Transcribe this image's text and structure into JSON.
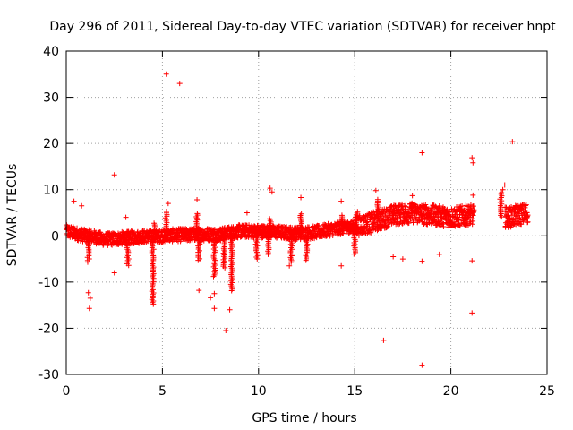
{
  "chart_data": {
    "type": "scatter",
    "title": "Day 296 of 2011, Sidereal Day-to-day VTEC variation (SDTVAR) for receiver hnpt",
    "xlabel": "GPS time / hours",
    "ylabel": "SDTVAR / TECUs",
    "xlim": [
      0,
      25
    ],
    "ylim": [
      -30,
      40
    ],
    "xticks": [
      0,
      5,
      10,
      15,
      20,
      25
    ],
    "yticks": [
      -30,
      -20,
      -10,
      0,
      10,
      20,
      30,
      40
    ],
    "xtick_labels": [
      "0",
      "5",
      "10",
      "15",
      "20",
      "25"
    ],
    "ytick_labels": [
      "-30",
      "-20",
      "-10",
      "0",
      "10",
      "20",
      "30",
      "40"
    ],
    "grid": true,
    "marker": "+",
    "color": "#ff0000",
    "series": [
      {
        "name": "SDTVAR",
        "description_of_dense_band": "approx. center values by hour",
        "trend": [
          {
            "x": 0.0,
            "y": 1.0
          },
          {
            "x": 0.5,
            "y": 0.5
          },
          {
            "x": 1.0,
            "y": 0.0
          },
          {
            "x": 1.5,
            "y": -0.3
          },
          {
            "x": 2.0,
            "y": -0.8
          },
          {
            "x": 3.0,
            "y": -0.5
          },
          {
            "x": 4.0,
            "y": -0.2
          },
          {
            "x": 5.0,
            "y": 0.0
          },
          {
            "x": 6.0,
            "y": 0.2
          },
          {
            "x": 7.0,
            "y": 0.3
          },
          {
            "x": 8.0,
            "y": 0.3
          },
          {
            "x": 9.0,
            "y": 1.0
          },
          {
            "x": 10.0,
            "y": 1.0
          },
          {
            "x": 11.0,
            "y": 0.8
          },
          {
            "x": 12.0,
            "y": 0.5
          },
          {
            "x": 13.0,
            "y": 0.8
          },
          {
            "x": 14.0,
            "y": 1.5
          },
          {
            "x": 15.0,
            "y": 2.0
          },
          {
            "x": 16.0,
            "y": 3.0
          },
          {
            "x": 17.0,
            "y": 4.5
          },
          {
            "x": 18.0,
            "y": 5.0
          },
          {
            "x": 19.0,
            "y": 4.5
          },
          {
            "x": 20.0,
            "y": 4.0
          },
          {
            "x": 21.0,
            "y": 4.5
          },
          {
            "x": 23.0,
            "y": 4.0
          },
          {
            "x": 24.0,
            "y": 5.0
          }
        ],
        "gaps": [
          [
            21.2,
            22.8
          ]
        ],
        "outliers": [
          {
            "x": 5.2,
            "y": 35.0
          },
          {
            "x": 5.9,
            "y": 33.0
          },
          {
            "x": 2.5,
            "y": 13.2
          },
          {
            "x": 23.2,
            "y": 20.4
          },
          {
            "x": 18.5,
            "y": 18.0
          },
          {
            "x": 21.1,
            "y": 16.9
          },
          {
            "x": 21.15,
            "y": 15.8
          },
          {
            "x": 18.5,
            "y": -28.0
          },
          {
            "x": 16.5,
            "y": -22.6
          },
          {
            "x": 8.3,
            "y": -20.5
          },
          {
            "x": 21.1,
            "y": -16.7
          },
          {
            "x": 8.5,
            "y": -16.0
          },
          {
            "x": 1.2,
            "y": -15.7
          },
          {
            "x": 7.7,
            "y": -15.7
          },
          {
            "x": 1.15,
            "y": -12.3
          },
          {
            "x": 1.25,
            "y": -13.5
          },
          {
            "x": 7.5,
            "y": -13.4
          },
          {
            "x": 7.7,
            "y": -12.5
          },
          {
            "x": 6.9,
            "y": -11.8
          },
          {
            "x": 21.1,
            "y": -5.4
          },
          {
            "x": 18.5,
            "y": -5.5
          },
          {
            "x": 17.5,
            "y": -5.0
          },
          {
            "x": 0.4,
            "y": 7.5
          },
          {
            "x": 0.8,
            "y": 6.5
          },
          {
            "x": 5.3,
            "y": 7.0
          },
          {
            "x": 6.8,
            "y": 7.8
          },
          {
            "x": 10.6,
            "y": 10.3
          },
          {
            "x": 10.7,
            "y": 9.5
          },
          {
            "x": 12.2,
            "y": 8.3
          },
          {
            "x": 14.3,
            "y": 7.5
          },
          {
            "x": 16.1,
            "y": 9.8
          },
          {
            "x": 18.0,
            "y": 8.7
          },
          {
            "x": 22.7,
            "y": 10.0
          },
          {
            "x": 22.8,
            "y": 11.0
          },
          {
            "x": 21.15,
            "y": 8.8
          },
          {
            "x": 9.4,
            "y": 5.0
          },
          {
            "x": 3.1,
            "y": 4.0
          },
          {
            "x": 14.3,
            "y": -6.5
          },
          {
            "x": 2.5,
            "y": -8.0
          },
          {
            "x": 11.6,
            "y": -6.5
          },
          {
            "x": 19.4,
            "y": -4.0
          },
          {
            "x": 17.0,
            "y": -4.5
          }
        ]
      }
    ]
  }
}
